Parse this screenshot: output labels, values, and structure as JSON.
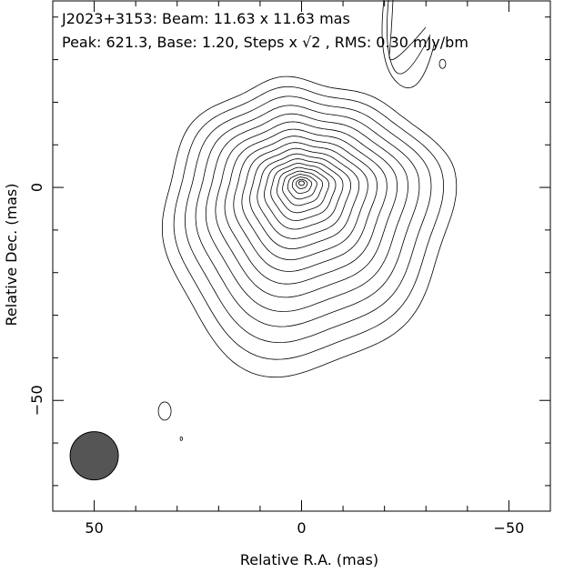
{
  "chart_data": {
    "type": "contour",
    "source": "J2023+3153",
    "header": {
      "line1": "J2023+3153: Beam: 11.63 x 11.63 mas",
      "line2_prefix": "Peak: 621.3, Base: 1.20, Steps x ",
      "line2_sqrt": "√2",
      "line2_suffix": ", RMS: 0.30 mJy/bm"
    },
    "beam": {
      "major_mas": 11.63,
      "minor_mas": 11.63,
      "center_ra": 50,
      "center_dec": -63,
      "fill": "#555555"
    },
    "peak": 621.3,
    "base": 1.2,
    "step_factor": "sqrt2",
    "rms": 0.3,
    "units": "mJy/bm",
    "xlabel": "Relative R.A. (mas)",
    "ylabel": "Relative Dec. (mas)",
    "xlim": [
      60,
      -60
    ],
    "ylim": [
      -76,
      44
    ],
    "x_ticks": [
      50,
      0,
      -50
    ],
    "x_tick_labels": [
      "50",
      "0",
      "−50"
    ],
    "y_ticks": [
      0,
      -50
    ],
    "y_tick_labels": [
      "0",
      "−50"
    ],
    "contour_count": 19,
    "source_center": {
      "ra": 0,
      "dec": 1
    }
  }
}
